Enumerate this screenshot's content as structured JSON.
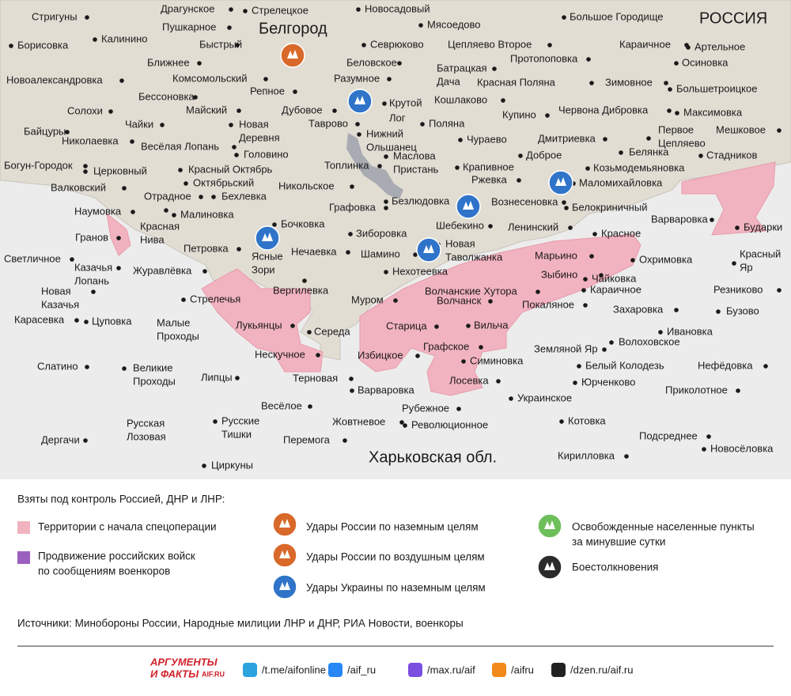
{
  "map": {
    "city": "Белгород",
    "country": "РОССИЯ",
    "region": "Харьковская обл.",
    "places": [
      "Стригуны",
      "Драгунское",
      "Стрелецкое",
      "Новосадовый",
      "Большое Городище",
      "Борисовка",
      "Калинино",
      "Пушкарное",
      "Быстрый",
      "Мясоедово",
      "Цепляево Второе",
      "Караичное",
      "Артельное",
      "Севрюково",
      "Ближнее",
      "Комсомольский",
      "Беловское",
      [
        "Батрацкая",
        "Дача"
      ],
      "Протопоповка",
      "Осиновка",
      "Новоалександровка",
      "Разумное",
      "Красная Поляна",
      "Зимовное",
      "Большетроицкое",
      "Бессоновка",
      "Репное",
      "Крутой",
      "Кошлаково",
      "Солохи",
      "Майский",
      "Дубовое",
      "Лог",
      "Купино",
      "Червона Дибровка",
      "Максимовка",
      "Чайки",
      [
        "Новая",
        "Деревня"
      ],
      "Таврово",
      "Поляна",
      "Байцуры",
      "Николаевка",
      "Весёлая Лопань",
      [
        "Нижний",
        "Ольшанец"
      ],
      "Чураево",
      "Дмитриевка",
      [
        "Первое",
        "Цепляево"
      ],
      "Мешковое",
      "Головино",
      [
        "Маслова",
        "Пристань"
      ],
      "Доброе",
      "Белянка",
      "Богун-Городок",
      "Красный Октябрь",
      "Крапивное",
      "Козьмодемьяновка",
      "Стадников",
      "Церковный",
      "Топлинка",
      "Октябрьский",
      "Ржевка",
      "Маломихайловка",
      "Валковский",
      "Бехлевка",
      "Никольское",
      "Отрадное",
      "Безлюдовка",
      "Вознесеновка",
      "Белокриничный",
      "Наумовка",
      "Малиновка",
      "Графовка",
      "Бочковка",
      [
        "Красная",
        "Нива"
      ],
      "Варваровка",
      "Гранов",
      "Зиборовка",
      "Шебекино",
      "Ленинский",
      "Красное",
      "Бударки",
      "Петровка",
      "Нечаевка",
      "Шамино",
      [
        "Новая",
        "Таволжанка"
      ],
      "Марьино",
      "Охримовка",
      [
        "Красный",
        "Яр"
      ],
      "Светличное",
      [
        "Казачья",
        "Лопань"
      ],
      [
        "Ясные",
        "Зори"
      ],
      "Журавлёвка",
      "Нехотеевка",
      "Зыбино",
      "Чайковка",
      "Стрелечья",
      "Вергилевка",
      "Волчанские Хутора",
      "Караичное",
      "Резниково",
      [
        "Новая",
        "Казачья"
      ],
      "Волчанск",
      "Муром",
      "Покаляное",
      "Бузово",
      "Карасевка",
      "Цуповка",
      "Захаровка",
      "Лукьянцы",
      [
        "Малые",
        "Проходы"
      ],
      "Середа",
      "Старица",
      "Вильча",
      "Ивановка",
      "Волоховское",
      "Графское",
      "Земляной Яр",
      "Нескучное",
      "Избицкое",
      "Симиновка",
      "Белый Колодезь",
      "Нефёдовка",
      "Слатино",
      [
        "Великие",
        "Проходы"
      ],
      "Липцы",
      "Терновая",
      "Юрченково",
      "Лосевка",
      "Варваровка",
      "Приколотное",
      "Украинское",
      "Весёлое",
      "Рубежное",
      "Жовтневое",
      "Революционное",
      "Котовка",
      [
        "Русская",
        "Лозовая"
      ],
      [
        "Русские",
        "Тишки"
      ],
      "Подсреднее",
      "Дергачи",
      "Перемога",
      "Новосёловка",
      "Кирилловка",
      "Циркуны"
    ]
  },
  "legend": {
    "title": "Взяты под контроль Россией, ДНР и ЛНР:",
    "territory": "Территории с начала спецоперации",
    "advance": [
      "Продвижение российских войск",
      "по сообщениям военкоров"
    ],
    "ru_ground": "Удары России по наземным целям",
    "ru_air": "Удары России по воздушным целям",
    "ua_ground": "Удары Украины по наземным целям",
    "liberated": [
      "Освобожденные населенные пункты",
      "за минувшие сутки"
    ],
    "clashes": "Боестолкновения",
    "sources": "Источники: Минобороны России, Народные милиции ЛНР и ДНР, РИА Новости, военкоры"
  },
  "footer": {
    "logo": [
      "АРГУМЕНТЫ",
      "И ФАКТЫ",
      "AIF.RU"
    ],
    "links": [
      "/t.me/aifonline",
      "/aif_ru",
      "/max.ru/aif",
      "/aifru",
      "/dzen.ru/aif.ru"
    ]
  }
}
